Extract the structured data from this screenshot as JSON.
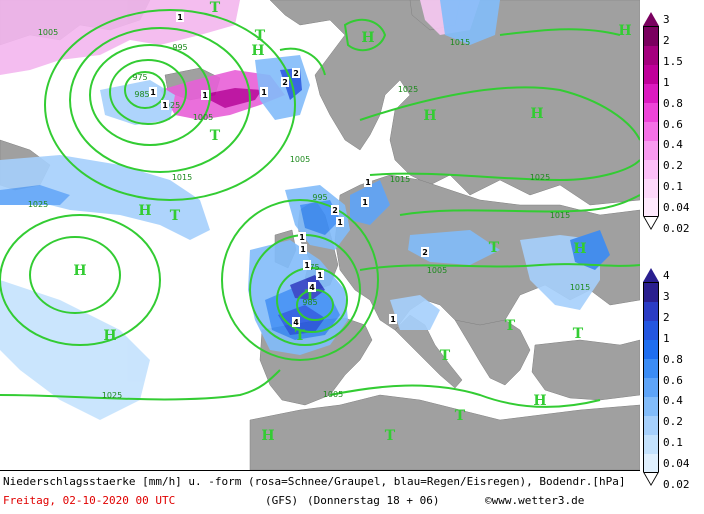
{
  "caption": {
    "line1": "Niederschlagsstaerke [mm/h] u. -form (rosa=Schnee/Graupel, blau=Regen/Eisregen), Bodendr.[hPa]",
    "date": "Freitag, 02-10-2020  00 UTC",
    "model": "(GFS)",
    "valid": "(Donnerstag 18 + 06)",
    "credit": "©www.wetter3.de"
  },
  "colors": {
    "sea": "#ffffff",
    "land": "#a0a0a0",
    "isobar": "#33cc33",
    "pressure_label": "#33aa33",
    "caption_date": "#e00000"
  },
  "legend_snow": {
    "name": "Schnee/Graupel",
    "levels": [
      "3",
      "2",
      "1.5",
      "1",
      "0.8",
      "0.6",
      "0.4",
      "0.2",
      "0.1",
      "0.04",
      "0.02"
    ],
    "colors": [
      "#7a005f",
      "#a4007e",
      "#c0009a",
      "#dc1ac0",
      "#ee44d8",
      "#f570e6",
      "#f99af0",
      "#fcbff7",
      "#fdd8fa",
      "#fee9fd"
    ]
  },
  "legend_rain": {
    "name": "Regen/Eisregen",
    "levels": [
      "4",
      "3",
      "2",
      "1",
      "0.8",
      "0.6",
      "0.4",
      "0.2",
      "0.1",
      "0.04",
      "0.02"
    ],
    "colors": [
      "#2a1f8f",
      "#2b3cc4",
      "#2456e0",
      "#1e6ef0",
      "#3b8cf5",
      "#5ea4f8",
      "#82bcfa",
      "#a6d0fc",
      "#c4e2fd",
      "#e0f0fe"
    ]
  },
  "map_labels": {
    "lows": [
      "T",
      "T",
      "T",
      "T",
      "T",
      "T",
      "T",
      "T",
      "T",
      "T",
      "T",
      "T"
    ],
    "highs": [
      "H",
      "H",
      "H",
      "H",
      "H",
      "H",
      "H",
      "H",
      "H",
      "H",
      "H"
    ],
    "isobars": [
      "1005",
      "995",
      "985",
      "975",
      "1025",
      "1005",
      "1015",
      "1025",
      "1005",
      "1015",
      "1015",
      "1025",
      "1025",
      "1005",
      "1015",
      "985",
      "975",
      "1005",
      "1025",
      "995",
      "1015"
    ],
    "precip_values": [
      "1",
      "1",
      "1",
      "1",
      "2",
      "2",
      "1",
      "1",
      "2",
      "1",
      "4",
      "1",
      "1",
      "4",
      "1",
      "2",
      "1",
      "1",
      "1"
    ]
  }
}
